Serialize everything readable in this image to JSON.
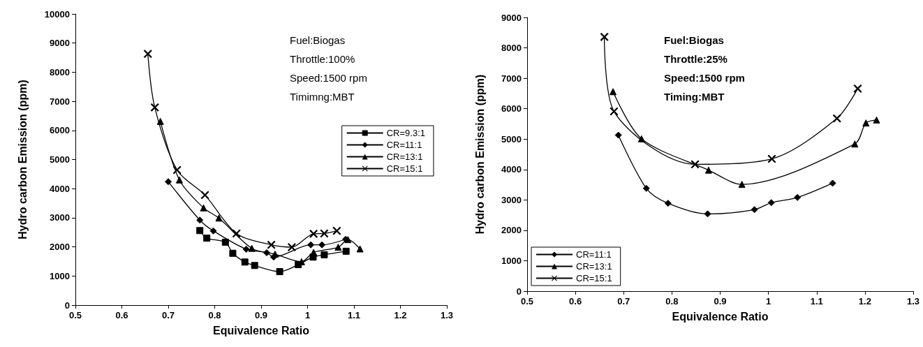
{
  "chart_data": [
    {
      "type": "line",
      "xlabel": "Equivalence Ratio",
      "ylabel": "Hydro carbon Emission (ppm)",
      "xlim": [
        0.5,
        1.3
      ],
      "xticks": [
        0.5,
        0.6,
        0.7,
        0.8,
        0.9,
        1,
        1.1,
        1.2,
        1.3
      ],
      "ylim": [
        0,
        10000
      ],
      "yticks": [
        0,
        1000,
        2000,
        3000,
        4000,
        5000,
        6000,
        7000,
        8000,
        9000,
        10000
      ],
      "grid": false,
      "legend": "right",
      "annotations": [
        "Fuel:Biogas",
        "Throttle:100%",
        "Speed:1500 rpm",
        "Timimng:MBT"
      ],
      "series": [
        {
          "name": "CR=9.3:1",
          "color": "#000000",
          "marker": "square",
          "x": [
            0.768,
            0.783,
            0.823,
            0.839,
            0.865,
            0.886,
            0.94,
            0.98,
            1.012,
            1.036,
            1.083
          ],
          "values": [
            2560,
            2300,
            2160,
            1780,
            1480,
            1360,
            1150,
            1390,
            1650,
            1730,
            1850
          ]
        },
        {
          "name": "CR=11:1",
          "color": "#000000",
          "marker": "diamond",
          "x": [
            0.7,
            0.768,
            0.797,
            0.868,
            0.912,
            0.927,
            1.007,
            1.031,
            1.082
          ],
          "values": [
            4240,
            2920,
            2550,
            1920,
            1800,
            1650,
            2070,
            2070,
            2260
          ]
        },
        {
          "name": "CR=13:1",
          "color": "#000000",
          "marker": "triangle",
          "x": [
            0.683,
            0.724,
            0.776,
            0.809,
            0.88,
            0.93,
            0.987,
            1.013,
            1.066,
            1.087,
            1.113
          ],
          "values": [
            6310,
            4300,
            3340,
            2990,
            1950,
            1750,
            1490,
            1810,
            1990,
            2250,
            1930
          ]
        },
        {
          "name": "CR=15:1",
          "color": "#000000",
          "marker": "cross",
          "x": [
            0.656,
            0.671,
            0.719,
            0.779,
            0.847,
            0.922,
            0.966,
            1.013,
            1.036,
            1.063
          ],
          "values": [
            8630,
            6790,
            4640,
            3780,
            2460,
            2070,
            1990,
            2450,
            2460,
            2550
          ]
        }
      ]
    },
    {
      "type": "line",
      "xlabel": "Equivalence Ratio",
      "ylabel": "Hydro carbon Emission (ppm)",
      "xlim": [
        0.5,
        1.3
      ],
      "xticks": [
        0.5,
        0.6,
        0.7,
        0.8,
        0.9,
        1,
        1.1,
        1.2,
        1.3
      ],
      "ylim": [
        0,
        9000
      ],
      "yticks": [
        0,
        1000,
        2000,
        3000,
        4000,
        5000,
        6000,
        7000,
        8000,
        9000
      ],
      "grid": false,
      "legend": "bottom left",
      "annotations": [
        "Fuel:Biogas",
        "Throttle:25%",
        "Speed:1500 rpm",
        "Timing:MBT"
      ],
      "series": [
        {
          "name": "CR=11:1",
          "color": "#000000",
          "marker": "diamond",
          "x": [
            0.689,
            0.747,
            0.792,
            0.874,
            0.971,
            1.006,
            1.06,
            1.133
          ],
          "values": [
            5130,
            3380,
            2890,
            2540,
            2680,
            2910,
            3080,
            3550
          ]
        },
        {
          "name": "CR=13:1",
          "color": "#000000",
          "marker": "triangle",
          "x": [
            0.678,
            0.737,
            0.876,
            0.945,
            1.179,
            1.202,
            1.224
          ],
          "values": [
            6560,
            5010,
            3980,
            3510,
            4840,
            5530,
            5630
          ]
        },
        {
          "name": "CR=15:1",
          "color": "#000000",
          "marker": "cross",
          "x": [
            0.66,
            0.68,
            0.848,
            1.007,
            1.142,
            1.185
          ],
          "values": [
            8360,
            5910,
            4170,
            4350,
            5680,
            6660
          ]
        }
      ]
    }
  ]
}
